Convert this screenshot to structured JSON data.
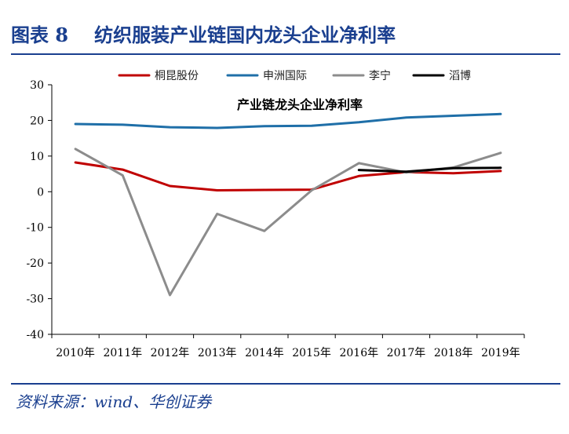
{
  "header": {
    "figure_label": "图表 8",
    "title": "纺织服装产业链国内龙头企业净利率"
  },
  "source": "资料来源：wind、华创证券",
  "colors": {
    "accent": "#1a3f8f"
  },
  "chart_data": {
    "type": "line",
    "title": "产业链龙头企业净利率",
    "xlabel": "",
    "ylabel": "",
    "categories": [
      "2010年",
      "2011年",
      "2012年",
      "2013年",
      "2014年",
      "2015年",
      "2016年",
      "2017年",
      "2018年",
      "2019年"
    ],
    "ylim": [
      -40,
      30
    ],
    "yticks": [
      30,
      20,
      10,
      0,
      -10,
      -20,
      -30,
      -40
    ],
    "grid": false,
    "legend": "top",
    "series": [
      {
        "name": "桐昆股份",
        "color": "#c00000",
        "values": [
          8.2,
          6.2,
          1.6,
          0.4,
          0.5,
          0.6,
          4.4,
          5.5,
          5.2,
          5.8
        ]
      },
      {
        "name": "申洲国际",
        "color": "#1f6fa8",
        "values": [
          19.0,
          18.8,
          18.1,
          17.9,
          18.4,
          18.5,
          19.5,
          20.8,
          21.3,
          21.8
        ]
      },
      {
        "name": "李宁",
        "color": "#8c8c8c",
        "values": [
          12.0,
          4.6,
          -29.0,
          -6.2,
          -11.0,
          0.4,
          8.0,
          5.4,
          6.8,
          10.9
        ]
      },
      {
        "name": "滔博",
        "color": "#000000",
        "values": [
          null,
          null,
          null,
          null,
          null,
          null,
          6.1,
          5.6,
          6.6,
          6.7
        ]
      }
    ]
  }
}
